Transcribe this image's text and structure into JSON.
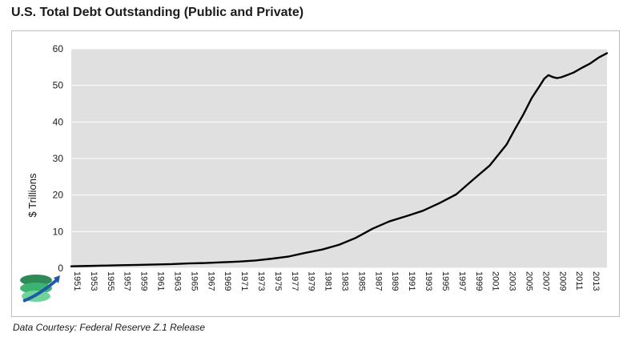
{
  "title": "U.S. Total Debt Outstanding (Public and Private)",
  "footer": "Data Courtesy: Federal Reserve Z.1 Release",
  "chart_data": {
    "type": "line",
    "title": "U.S. Total Debt Outstanding (Public and Private)",
    "ylabel": "$ Trillions",
    "xlabel": "",
    "ylim": [
      0,
      60
    ],
    "xlim": [
      1951,
      2015
    ],
    "yticks": [
      "0",
      "10",
      "20",
      "30",
      "40",
      "50",
      "60"
    ],
    "xticks": [
      "1951",
      "1953",
      "1955",
      "1957",
      "1959",
      "1961",
      "1963",
      "1965",
      "1967",
      "1969",
      "1971",
      "1973",
      "1975",
      "1977",
      "1979",
      "1981",
      "1983",
      "1985",
      "1987",
      "1989",
      "1991",
      "1993",
      "1995",
      "1997",
      "1999",
      "2001",
      "2003",
      "2005",
      "2007",
      "2009",
      "2011",
      "2013"
    ],
    "grid": true,
    "legend": "none",
    "colors": {
      "plot_bg": "#e0e0e0",
      "line": "#000000",
      "grid": "#ffffff"
    },
    "series": [
      {
        "x": [
          1951,
          1953,
          1955,
          1957,
          1959,
          1961,
          1963,
          1965,
          1967,
          1969,
          1971,
          1973,
          1975,
          1977,
          1979,
          1981,
          1983,
          1985,
          1987,
          1989,
          1991,
          1993,
          1995,
          1997,
          1999,
          2001,
          2003,
          2004,
          2005,
          2006,
          2007,
          2007.5,
          2008,
          2008.5,
          2009,
          2009.5,
          2010,
          2011,
          2012,
          2013,
          2014,
          2015
        ],
        "y": [
          0.5,
          0.6,
          0.7,
          0.8,
          0.9,
          1.0,
          1.1,
          1.3,
          1.4,
          1.6,
          1.8,
          2.1,
          2.6,
          3.2,
          4.2,
          5.1,
          6.4,
          8.3,
          10.8,
          12.8,
          14.2,
          15.7,
          17.8,
          20.2,
          24.2,
          28.1,
          33.8,
          38.0,
          42.0,
          46.5,
          50.0,
          51.8,
          52.8,
          52.3,
          52.0,
          52.2,
          52.6,
          53.5,
          54.8,
          56.0,
          57.6,
          58.8
        ]
      }
    ]
  }
}
